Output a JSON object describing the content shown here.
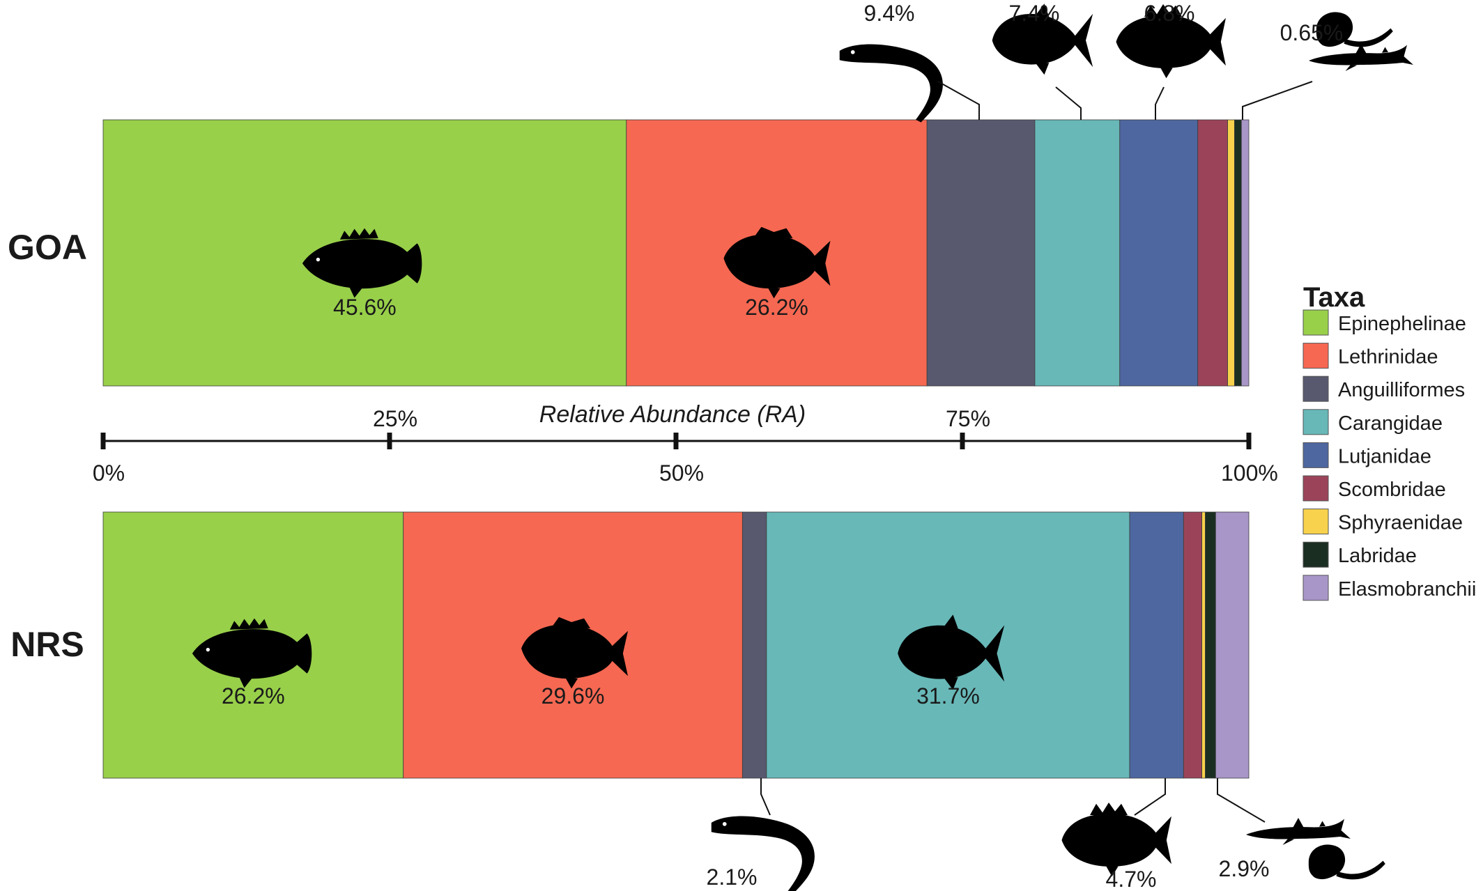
{
  "chart_data": {
    "type": "bar",
    "orientation": "horizontal-stacked",
    "xlabel": "Relative Abundance (RA)",
    "xlim": [
      0,
      100
    ],
    "ticks": [
      "0%",
      "25%",
      "50%",
      "75%",
      "100%"
    ],
    "categories": [
      "GOA",
      "NRS"
    ],
    "legend": {
      "title": "Taxa",
      "position": "right"
    },
    "series": [
      {
        "name": "Epinephelinae",
        "color": "#98D04A",
        "values": [
          45.6,
          26.2
        ]
      },
      {
        "name": "Lethrinidae",
        "color": "#F66852",
        "values": [
          26.2,
          29.6
        ]
      },
      {
        "name": "Anguilliformes",
        "color": "#58596F",
        "values": [
          9.4,
          2.1
        ]
      },
      {
        "name": "Carangidae",
        "color": "#68B8B8",
        "values": [
          7.4,
          31.7
        ]
      },
      {
        "name": "Lutjanidae",
        "color": "#4E67A0",
        "values": [
          6.8,
          4.7
        ]
      },
      {
        "name": "Scombridae",
        "color": "#9B4459",
        "values": [
          2.6,
          1.6
        ]
      },
      {
        "name": "Sphyraenidae",
        "color": "#F8D24C",
        "values": [
          0.6,
          0.3
        ]
      },
      {
        "name": "Labridae",
        "color": "#1B2E22",
        "values": [
          0.6,
          0.9
        ]
      },
      {
        "name": "Elasmobranchii",
        "color": "#A896C8",
        "values": [
          0.65,
          2.9
        ]
      }
    ],
    "annotations": {
      "GOA": [
        {
          "series": "Epinephelinae",
          "label": "45.6%",
          "icon": "grouper-icon"
        },
        {
          "series": "Lethrinidae",
          "label": "26.2%",
          "icon": "emperor-fish-icon"
        },
        {
          "series": "Anguilliformes",
          "label": "9.4%",
          "icon": "eel-icon"
        },
        {
          "series": "Carangidae",
          "label": "7.4%",
          "icon": "jack-fish-icon"
        },
        {
          "series": "Lutjanidae",
          "label": "6.8%",
          "icon": "snapper-icon"
        },
        {
          "series": "Elasmobranchii",
          "label": "0.65%",
          "icon": "shark-ray-icon"
        }
      ],
      "NRS": [
        {
          "series": "Epinephelinae",
          "label": "26.2%",
          "icon": "grouper-icon"
        },
        {
          "series": "Lethrinidae",
          "label": "29.6%",
          "icon": "emperor-fish-icon"
        },
        {
          "series": "Carangidae",
          "label": "31.7%",
          "icon": "jack-fish-icon"
        },
        {
          "series": "Anguilliformes",
          "label": "2.1%",
          "icon": "eel-icon"
        },
        {
          "series": "Lutjanidae",
          "label": "4.7%",
          "icon": "snapper-icon"
        },
        {
          "series": "Elasmobranchii",
          "label": "2.9%",
          "icon": "shark-ray-icon"
        }
      ]
    }
  }
}
